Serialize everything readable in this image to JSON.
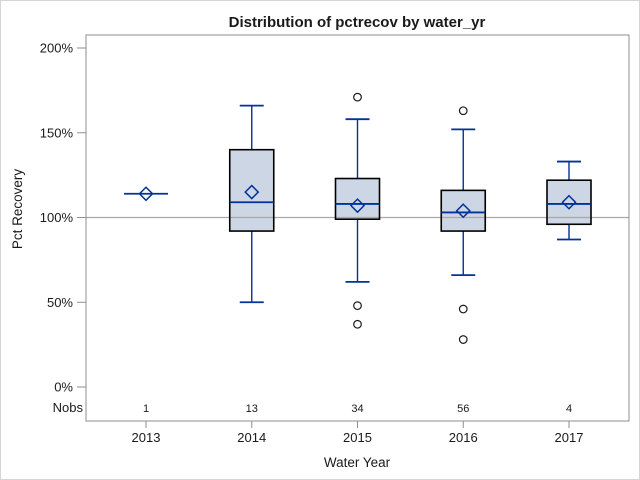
{
  "window": {
    "background": "#ffffff",
    "border_color": "#d4d4d4"
  },
  "chart_data": {
    "type": "boxplot",
    "title": "Distribution of pctrecov by water_yr",
    "xlabel": "Water Year",
    "ylabel": "Pct Recovery",
    "categories": [
      "2013",
      "2014",
      "2015",
      "2016",
      "2017"
    ],
    "nobs_label": "Nobs",
    "nobs": [
      1,
      13,
      34,
      56,
      4
    ],
    "y_ticks": [
      {
        "value": 0,
        "label": "0%"
      },
      {
        "value": 50,
        "label": "50%"
      },
      {
        "value": 100,
        "label": "100%"
      },
      {
        "value": 150,
        "label": "150%"
      },
      {
        "value": 200,
        "label": "200%"
      }
    ],
    "ylim": [
      0,
      200
    ],
    "reference_line": 100,
    "grid": "reference-line-only",
    "legend": "none",
    "series": [
      {
        "category": "2013",
        "n": 1,
        "mean": 114,
        "median": 114,
        "q1": 114,
        "q3": 114,
        "whisker_low": 114,
        "whisker_high": 114,
        "outliers": []
      },
      {
        "category": "2014",
        "n": 13,
        "mean": 115,
        "median": 109,
        "q1": 92,
        "q3": 140,
        "whisker_low": 50,
        "whisker_high": 166,
        "outliers": []
      },
      {
        "category": "2015",
        "n": 34,
        "mean": 107,
        "median": 108,
        "q1": 99,
        "q3": 123,
        "whisker_low": 62,
        "whisker_high": 158,
        "outliers": [
          171,
          48,
          37
        ]
      },
      {
        "category": "2016",
        "n": 56,
        "mean": 104,
        "median": 103,
        "q1": 92,
        "q3": 116,
        "whisker_low": 66,
        "whisker_high": 152,
        "outliers": [
          163,
          46,
          28
        ]
      },
      {
        "category": "2017",
        "n": 4,
        "mean": 109,
        "median": 108,
        "q1": 96,
        "q3": 122,
        "whisker_low": 87,
        "whisker_high": 133,
        "outliers": []
      }
    ],
    "colors": {
      "box_fill": "#ccd6e4",
      "box_border": "#000000",
      "whisker": "#003399",
      "median": "#003399",
      "mean_marker": "#003399",
      "outlier": "#1a1a1a",
      "reference_line": "#a8a8a8",
      "frame": "#8f8f8f",
      "text": "#1a1a1a"
    }
  }
}
